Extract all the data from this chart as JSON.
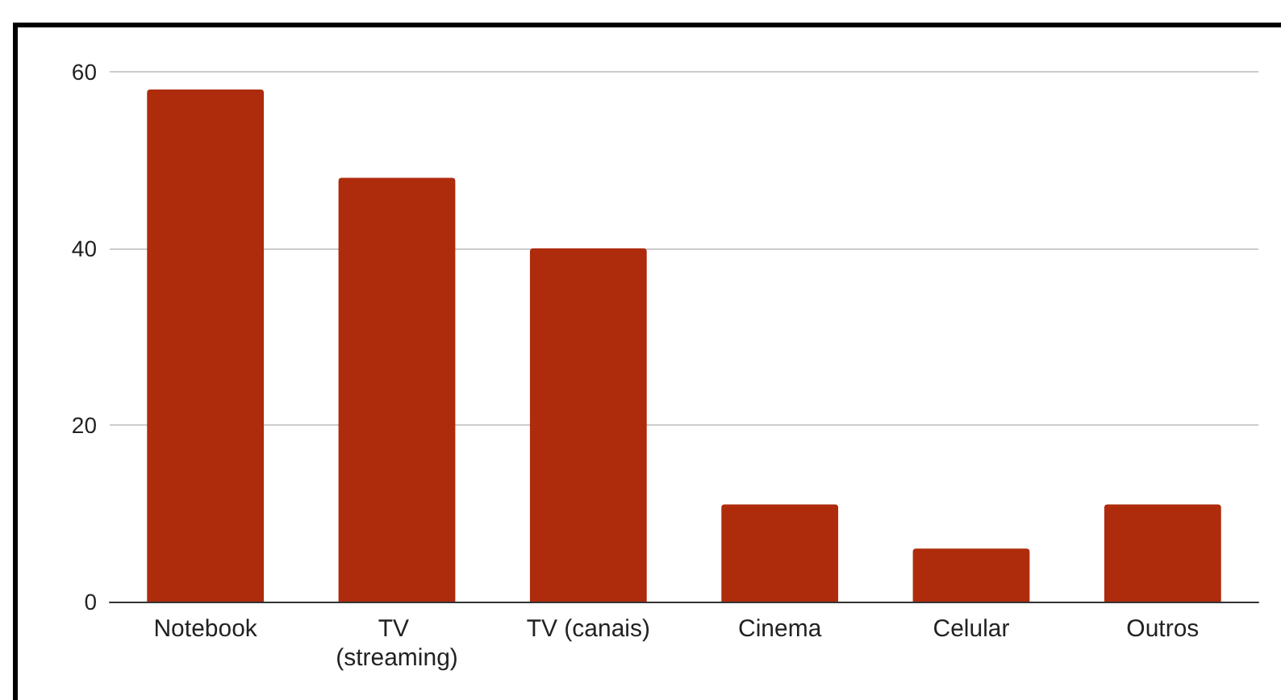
{
  "chart_data": {
    "type": "bar",
    "categories": [
      "Notebook",
      "TV (streaming)",
      "TV (canais)",
      "Cinema",
      "Celular",
      "Outros"
    ],
    "values": [
      58,
      48,
      40,
      11,
      6,
      11
    ],
    "color": "#ae2b0c",
    "ylim": [
      0,
      60
    ],
    "yticks": [
      0,
      20,
      40,
      60
    ],
    "grid": "y"
  }
}
